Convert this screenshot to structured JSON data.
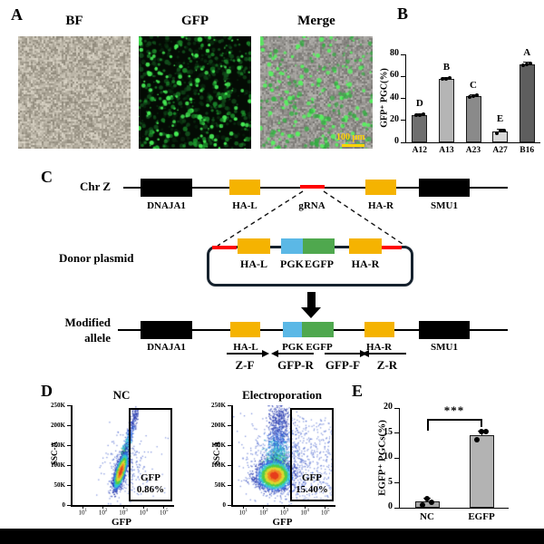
{
  "panels": {
    "a": {
      "label": "A",
      "images": [
        {
          "title": "BF"
        },
        {
          "title": "GFP"
        },
        {
          "title": "Merge"
        }
      ],
      "scalebar": "100 μm"
    },
    "b": {
      "label": "B"
    },
    "c": {
      "label": "C",
      "chr_name": "Chr Z",
      "genes": {
        "dnaja1": "DNAJA1",
        "hal": "HA-L",
        "grna": "gRNA",
        "har": "HA-R",
        "smu1": "SMU1"
      },
      "donor_label": "Donor plasmid",
      "plasmid": {
        "hal": "HA-L",
        "pgk": "PGK",
        "egfp": "EGFP",
        "har": "HA-R"
      },
      "modified_line1": "Modified",
      "modified_line2": "allele",
      "modified": {
        "dnaja1": "DNAJA1",
        "hal": "HA-L",
        "pgk": "PGK",
        "egfp": "EGFP",
        "har": "HA-R",
        "smu1": "SMU1"
      },
      "primers": {
        "zf": "Z-F",
        "gfpr": "GFP-R",
        "gfpf": "GFP-F",
        "zr": "Z-R"
      }
    },
    "d": {
      "label": "D"
    },
    "e": {
      "label": "E"
    }
  },
  "chart_data": [
    {
      "id": "gfp-pgc-clones",
      "type": "bar",
      "categories": [
        "A12",
        "A13",
        "A23",
        "A27",
        "B16"
      ],
      "values": [
        25,
        58,
        42,
        10,
        71
      ],
      "errors": [
        1.2,
        1.2,
        1.2,
        2.2,
        1.6
      ],
      "letters": [
        "D",
        "B",
        "C",
        "E",
        "A"
      ],
      "dots": [
        [
          24.6,
          25.3,
          25.0
        ],
        [
          57.4,
          58.4,
          58.0
        ],
        [
          41.5,
          42.5,
          42.2
        ],
        [
          8.6,
          10.4,
          11.0
        ],
        [
          70.2,
          71.6,
          71.0
        ]
      ],
      "ylabel": "GFP⁺ PGC(%)",
      "ylim": [
        0,
        80
      ],
      "yticks": [
        0,
        20,
        40,
        60,
        80
      ],
      "bar_colors": [
        "#6f6f6f",
        "#b5b5b5",
        "#8a8a8a",
        "#d9d9d9",
        "#5e5e5e"
      ]
    },
    {
      "id": "egfp-pgcs",
      "type": "bar",
      "categories": [
        "NC",
        "EGFP"
      ],
      "values": [
        1.2,
        14.6
      ],
      "errors": [
        0.7,
        0.8
      ],
      "dots": [
        [
          0.6,
          1.1,
          1.9
        ],
        [
          13.6,
          15.2,
          15.3
        ]
      ],
      "ylabel": "EGFP⁺ PGCs(%)",
      "ylim": [
        0,
        20
      ],
      "yticks": [
        0,
        5,
        10,
        15,
        20
      ],
      "significance": "***",
      "bar_colors": [
        "#a6a6a6",
        "#b3b3b3"
      ]
    },
    {
      "id": "flow-nc",
      "type": "scatter",
      "title": "NC",
      "xlabel": "GFP",
      "ylabel": "SSC-A",
      "yticks": [
        "0",
        "50K",
        "100K",
        "150K",
        "200K",
        "250K"
      ],
      "xtick_exponents": [
        1,
        2,
        3,
        4,
        5
      ],
      "gate": {
        "label": "GFP",
        "value": "0.86%"
      }
    },
    {
      "id": "flow-electroporation",
      "type": "scatter",
      "title": "Electroporation",
      "xlabel": "GFP",
      "ylabel": "SSC-A",
      "yticks": [
        "0",
        "50K",
        "100K",
        "150K",
        "200K",
        "250K"
      ],
      "xtick_exponents": [
        1,
        2,
        3,
        4,
        5
      ],
      "gate": {
        "label": "GFP",
        "value": "15.40%"
      }
    }
  ],
  "colors": {
    "gene_box": "#000000",
    "homology_arm": "#f5b301",
    "pgk": "#5bb8e6",
    "egfp": "#4fa84e",
    "grna": "#ff0000",
    "plasmid_outline": "#16222e",
    "scalebar": "#ffd400",
    "flow_scatter": "#3050c8"
  }
}
